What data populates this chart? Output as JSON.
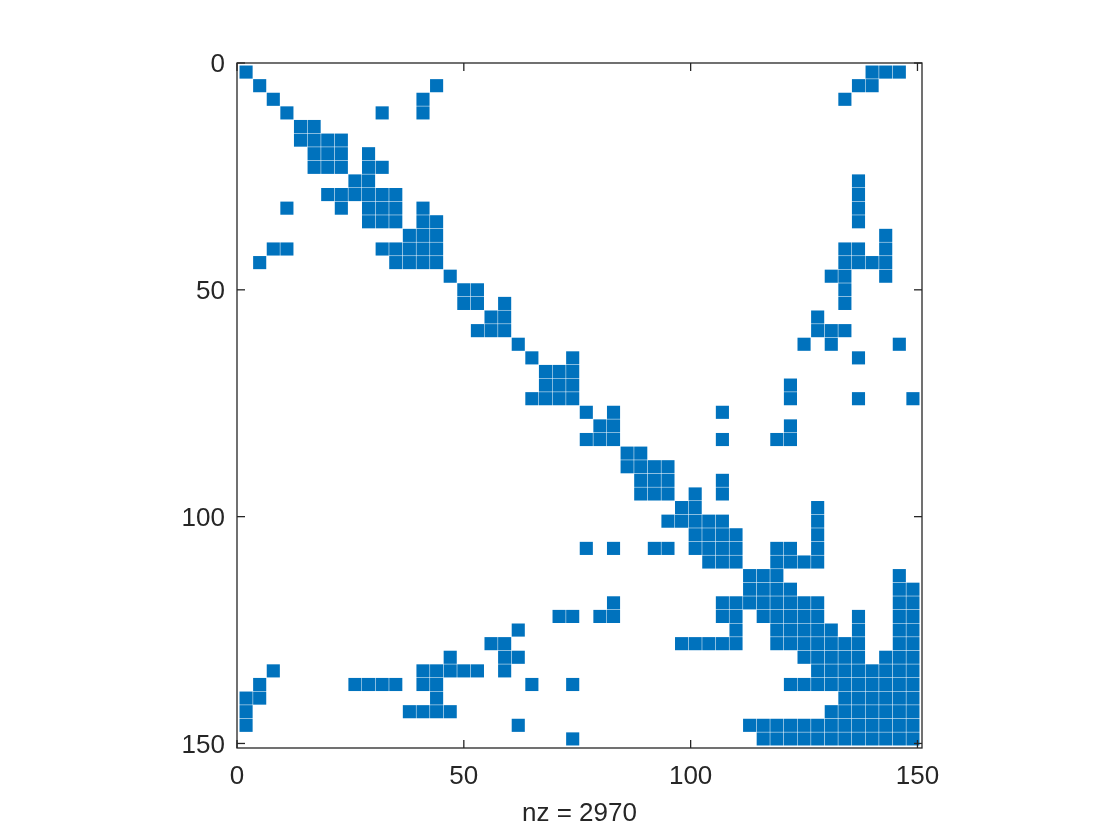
{
  "chart_data": {
    "type": "scatter",
    "xlabel": "nz = 2970",
    "color": "#0072bd",
    "marker": "square",
    "xlim": [
      0,
      151
    ],
    "ylim": [
      151,
      0
    ],
    "xticks": [
      0,
      50,
      100,
      150
    ],
    "yticks": [
      0,
      50,
      100,
      150
    ],
    "x": [
      2,
      140,
      143,
      146,
      5,
      44,
      137,
      140,
      8,
      41,
      134,
      11,
      32,
      41,
      14,
      17,
      14,
      17,
      20,
      23,
      17,
      20,
      23,
      29,
      17,
      20,
      23,
      29,
      32,
      26,
      29,
      137,
      20,
      23,
      26,
      29,
      32,
      35,
      137,
      11,
      23,
      29,
      32,
      35,
      41,
      137,
      29,
      32,
      35,
      41,
      44,
      137,
      38,
      41,
      44,
      143,
      8,
      11,
      32,
      35,
      38,
      41,
      44,
      134,
      137,
      143,
      5,
      35,
      38,
      41,
      44,
      134,
      137,
      140,
      143,
      47,
      131,
      134,
      143,
      50,
      53,
      134,
      50,
      53,
      59,
      134,
      56,
      59,
      128,
      53,
      56,
      59,
      128,
      131,
      134,
      62,
      125,
      131,
      146,
      65,
      74,
      137,
      68,
      71,
      74,
      68,
      71,
      74,
      122,
      65,
      68,
      71,
      74,
      122,
      137,
      149,
      77,
      83,
      107,
      80,
      83,
      122,
      77,
      80,
      83,
      107,
      119,
      122,
      86,
      89,
      86,
      89,
      92,
      95,
      89,
      92,
      95,
      107,
      89,
      92,
      95,
      101,
      107,
      98,
      101,
      128,
      95,
      98,
      101,
      104,
      107,
      128,
      101,
      104,
      107,
      110,
      128,
      77,
      83,
      92,
      95,
      101,
      104,
      107,
      110,
      119,
      122,
      128,
      104,
      107,
      110,
      119,
      122,
      125,
      128,
      113,
      116,
      119,
      146,
      113,
      116,
      119,
      122,
      146,
      149,
      83,
      107,
      110,
      113,
      116,
      119,
      122,
      125,
      128,
      146,
      149,
      71,
      74,
      80,
      83,
      107,
      110,
      116,
      119,
      122,
      125,
      128,
      137,
      146,
      149,
      62,
      110,
      119,
      122,
      125,
      128,
      131,
      137,
      146,
      149,
      56,
      59,
      98,
      101,
      104,
      107,
      110,
      119,
      122,
      125,
      128,
      131,
      134,
      137,
      146,
      149,
      47,
      59,
      62,
      125,
      128,
      131,
      134,
      137,
      143,
      146,
      149,
      8,
      41,
      44,
      47,
      50,
      53,
      59,
      128,
      131,
      134,
      137,
      140,
      143,
      146,
      149,
      5,
      26,
      29,
      32,
      35,
      41,
      44,
      65,
      74,
      122,
      125,
      128,
      131,
      134,
      137,
      140,
      143,
      146,
      149,
      2,
      5,
      44,
      134,
      137,
      140,
      143,
      146,
      149,
      2,
      38,
      41,
      44,
      47,
      131,
      134,
      137,
      140,
      143,
      146,
      149,
      2,
      62,
      113,
      116,
      119,
      122,
      125,
      128,
      131,
      134,
      137,
      140,
      143,
      146,
      149,
      74,
      116,
      119,
      122,
      125,
      128,
      131,
      134,
      137,
      140,
      143,
      146,
      149
    ],
    "values": [
      2,
      2,
      2,
      2,
      5,
      5,
      5,
      5,
      8,
      8,
      8,
      11,
      11,
      11,
      14,
      14,
      17,
      17,
      17,
      17,
      20,
      20,
      20,
      20,
      23,
      23,
      23,
      23,
      23,
      26,
      26,
      26,
      29,
      29,
      29,
      29,
      29,
      29,
      29,
      32,
      32,
      32,
      32,
      32,
      32,
      32,
      35,
      35,
      35,
      35,
      35,
      35,
      38,
      38,
      38,
      38,
      41,
      41,
      41,
      41,
      41,
      41,
      41,
      41,
      41,
      41,
      44,
      44,
      44,
      44,
      44,
      44,
      44,
      44,
      44,
      47,
      47,
      47,
      47,
      50,
      50,
      50,
      53,
      53,
      53,
      53,
      56,
      56,
      56,
      59,
      59,
      59,
      59,
      59,
      59,
      62,
      62,
      62,
      62,
      65,
      65,
      65,
      68,
      68,
      68,
      71,
      71,
      71,
      71,
      74,
      74,
      74,
      74,
      74,
      74,
      74,
      77,
      77,
      77,
      80,
      80,
      80,
      83,
      83,
      83,
      83,
      83,
      83,
      86,
      86,
      89,
      89,
      89,
      89,
      92,
      92,
      92,
      92,
      95,
      95,
      95,
      95,
      95,
      98,
      98,
      98,
      101,
      101,
      101,
      101,
      101,
      101,
      104,
      104,
      104,
      104,
      104,
      107,
      107,
      107,
      107,
      107,
      107,
      107,
      107,
      107,
      107,
      107,
      110,
      110,
      110,
      110,
      110,
      110,
      110,
      113,
      113,
      113,
      113,
      116,
      116,
      116,
      116,
      116,
      116,
      119,
      119,
      119,
      119,
      119,
      119,
      119,
      119,
      119,
      119,
      119,
      122,
      122,
      122,
      122,
      122,
      122,
      122,
      122,
      122,
      122,
      122,
      122,
      122,
      122,
      125,
      125,
      125,
      125,
      125,
      125,
      125,
      125,
      125,
      125,
      128,
      128,
      128,
      128,
      128,
      128,
      128,
      128,
      128,
      128,
      128,
      128,
      128,
      128,
      128,
      128,
      131,
      131,
      131,
      131,
      131,
      131,
      131,
      131,
      131,
      131,
      131,
      134,
      134,
      134,
      134,
      134,
      134,
      134,
      134,
      134,
      134,
      134,
      134,
      134,
      134,
      134,
      137,
      137,
      137,
      137,
      137,
      137,
      137,
      137,
      137,
      137,
      137,
      137,
      137,
      137,
      137,
      137,
      137,
      137,
      137,
      140,
      140,
      140,
      140,
      140,
      140,
      140,
      140,
      140,
      143,
      143,
      143,
      143,
      143,
      143,
      143,
      143,
      143,
      143,
      143,
      143,
      146,
      146,
      146,
      146,
      146,
      146,
      146,
      146,
      146,
      146,
      146,
      146,
      146,
      146,
      146,
      149,
      149,
      149,
      149,
      149,
      149,
      149,
      149,
      149,
      149,
      149,
      149,
      149
    ]
  }
}
